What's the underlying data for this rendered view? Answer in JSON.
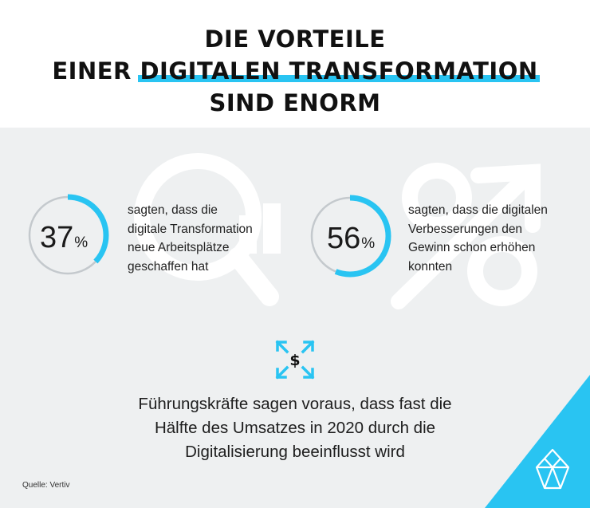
{
  "title": {
    "line1": "DIE VORTEILE",
    "line2_prefix": "EINER ",
    "line2_highlight": "DIGITALEN TRANSFORMATION",
    "line3": "SIND ENORM"
  },
  "stats": [
    {
      "value": "37",
      "unit": "%",
      "fraction": 0.37,
      "text": [
        "sagten, dass die",
        "digitale Transformation",
        "neue Arbeitsplätze",
        "geschaffen hat"
      ]
    },
    {
      "value": "56",
      "unit": "%",
      "fraction": 0.56,
      "text": [
        "sagten, dass die digitalen",
        "Verbesserungen den",
        "Gewinn schon erhöhen",
        "konnten"
      ]
    }
  ],
  "main_text": [
    "Führungskräfte sagen voraus, dass fast die",
    "Hälfte des Umsatzes in 2020 durch die",
    "Digitalisierung beeinflusst wird"
  ],
  "icon_symbol": "$",
  "source": "Quelle: Vertiv",
  "icons": [
    "magnifier-watermark-icon",
    "percent-watermark-icon",
    "dollar-expand-icon",
    "diamond-logo-icon"
  ],
  "colors": {
    "accent": "#29c4f2",
    "panel_bg": "#eef0f1",
    "ring_track": "#c4c9cd",
    "text": "#1e1e1e"
  }
}
